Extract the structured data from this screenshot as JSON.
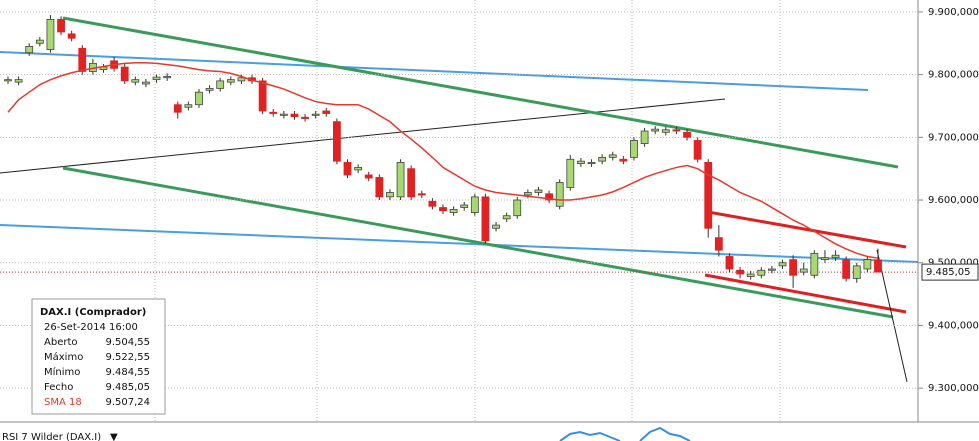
{
  "chart_data": {
    "type": "candlestick",
    "ylim": [
      9246,
      9919
    ],
    "yticks": [
      {
        "value": 9300,
        "label": "9.300,000"
      },
      {
        "value": 9400,
        "label": "9.400,000"
      },
      {
        "value": 9500,
        "label": "9.500,000"
      },
      {
        "value": 9600,
        "label": "9.600,000"
      },
      {
        "value": 9700,
        "label": "9.700,000"
      },
      {
        "value": 9800,
        "label": "9.800,000"
      },
      {
        "value": 9900,
        "label": "9.900,000"
      }
    ],
    "grid": true,
    "up_color": "#a8d870",
    "down_color": "#e02222",
    "open": [
      9790,
      9788,
      9835,
      9850,
      9840,
      9888,
      9865,
      9842,
      9805,
      9808,
      9822,
      9812,
      9788,
      9785,
      9792,
      9795,
      9752,
      9748,
      9752,
      9775,
      9778,
      9788,
      9790,
      9795,
      9790,
      9740,
      9735,
      9737,
      9732,
      9735,
      9742,
      9725,
      9660,
      9648,
      9640,
      9636,
      9605,
      9605,
      9650,
      9610,
      9598,
      9588,
      9580,
      9588,
      9580,
      9605,
      9555,
      9570,
      9575,
      9608,
      9612,
      9610,
      9590,
      9620,
      9658,
      9658,
      9662,
      9668,
      9665,
      9668,
      9690,
      9710,
      9708,
      9712,
      9708,
      9695,
      9660,
      9540,
      9510,
      9488,
      9478,
      9480,
      9488,
      9495,
      9505,
      9485,
      9480,
      9505,
      9508,
      9505,
      9475,
      9490,
      9504.55
    ],
    "high": [
      9797,
      9797,
      9850,
      9860,
      9895,
      9893,
      9870,
      9847,
      9825,
      9817,
      9828,
      9817,
      9797,
      9793,
      9800,
      9802,
      9757,
      9757,
      9777,
      9783,
      9795,
      9797,
      9800,
      9800,
      9795,
      9745,
      9742,
      9742,
      9737,
      9742,
      9747,
      9730,
      9665,
      9657,
      9645,
      9641,
      9617,
      9665,
      9655,
      9615,
      9603,
      9593,
      9590,
      9597,
      9610,
      9610,
      9565,
      9580,
      9605,
      9617,
      9621,
      9615,
      9633,
      9672,
      9667,
      9665,
      9673,
      9677,
      9670,
      9700,
      9715,
      9718,
      9717,
      9717,
      9713,
      9700,
      9665,
      9560,
      9515,
      9493,
      9487,
      9493,
      9495,
      9505,
      9512,
      9500,
      9520,
      9520,
      9520,
      9510,
      9500,
      9510,
      9522.55
    ],
    "low": [
      9785,
      9783,
      9830,
      9845,
      9835,
      9863,
      9853,
      9800,
      9800,
      9803,
      9805,
      9785,
      9783,
      9780,
      9787,
      9790,
      9730,
      9743,
      9747,
      9770,
      9773,
      9783,
      9785,
      9785,
      9737,
      9733,
      9730,
      9728,
      9725,
      9730,
      9733,
      9657,
      9635,
      9643,
      9630,
      9600,
      9600,
      9600,
      9600,
      9603,
      9585,
      9578,
      9575,
      9583,
      9575,
      9530,
      9550,
      9565,
      9570,
      9603,
      9607,
      9595,
      9585,
      9615,
      9653,
      9653,
      9657,
      9663,
      9657,
      9663,
      9685,
      9705,
      9703,
      9705,
      9695,
      9660,
      9540,
      9510,
      9485,
      9475,
      9473,
      9475,
      9483,
      9490,
      9460,
      9480,
      9475,
      9500,
      9503,
      9470,
      9468,
      9485,
      9484.55
    ],
    "close": [
      9792,
      9792,
      9845,
      9855,
      9888,
      9868,
      9858,
      9805,
      9818,
      9812,
      9810,
      9790,
      9792,
      9788,
      9796,
      9797,
      9740,
      9752,
      9772,
      9778,
      9790,
      9792,
      9795,
      9790,
      9742,
      9738,
      9737,
      9733,
      9730,
      9737,
      9738,
      9662,
      9640,
      9652,
      9635,
      9605,
      9612,
      9660,
      9605,
      9608,
      9590,
      9583,
      9585,
      9592,
      9605,
      9535,
      9560,
      9575,
      9600,
      9612,
      9616,
      9600,
      9628,
      9665,
      9662,
      9660,
      9668,
      9672,
      9662,
      9695,
      9710,
      9713,
      9712,
      9710,
      9700,
      9665,
      9555,
      9520,
      9490,
      9482,
      9482,
      9488,
      9490,
      9500,
      9480,
      9490,
      9515,
      9508,
      9512,
      9475,
      9495,
      9505,
      9485.05
    ],
    "sma": {
      "name": "SMA 18",
      "color": "#e8382a",
      "values": [
        9740,
        9760,
        9772,
        9784,
        9792,
        9798,
        9803,
        9807,
        9810,
        9813,
        9816,
        9818,
        9819,
        9819,
        9818,
        9816,
        9814,
        9811,
        9808,
        9806,
        9805,
        9802,
        9797,
        9791,
        9787,
        9782,
        9777,
        9770,
        9763,
        9757,
        9754,
        9752,
        9752,
        9752,
        9745,
        9735,
        9725,
        9710,
        9697,
        9683,
        9668,
        9652,
        9642,
        9632,
        9622,
        9616,
        9612,
        9610,
        9608,
        9606,
        9604,
        9602,
        9600,
        9600,
        9602,
        9605,
        9608,
        9613,
        9620,
        9628,
        9636,
        9642,
        9647,
        9652,
        9655,
        9650,
        9640,
        9632,
        9622,
        9612,
        9605,
        9598,
        9588,
        9578,
        9568,
        9560,
        9550,
        9540,
        9530,
        9522,
        9515,
        9510,
        9507.24
      ]
    },
    "last_price": {
      "value": 9485.05,
      "label": "9.485,05"
    },
    "lower_panel_label": "RSI 7 Wilder (DAX.I)"
  },
  "info_box": {
    "title": "DAX.I (Comprador)",
    "date": "26-Set-2014 16:00",
    "rows": [
      [
        "Aberto",
        "9.504,55"
      ],
      [
        "Máximo",
        "9.522,55"
      ],
      [
        "Mínimo",
        "9.484,55"
      ],
      [
        "Fecho",
        "9.485,05"
      ]
    ],
    "sma_row": [
      "SMA 18",
      "9.507,24"
    ]
  }
}
